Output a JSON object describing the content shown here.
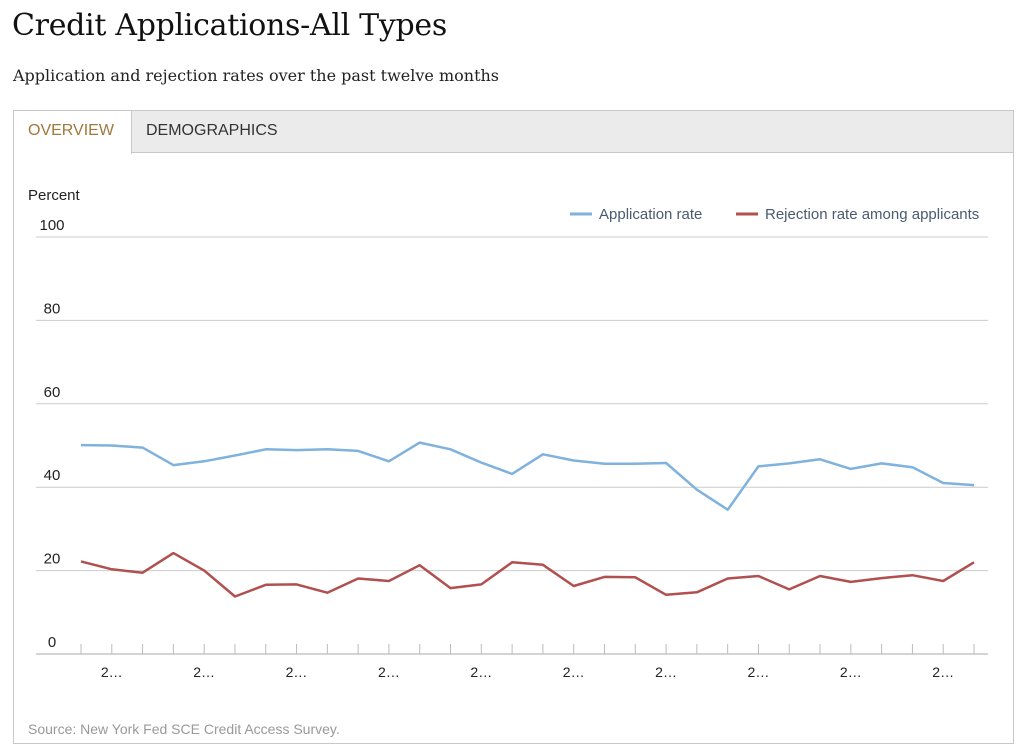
{
  "page": {
    "title": "Credit Applications-All Types",
    "subtitle": "Application and rejection rates over the past twelve months"
  },
  "tabs": [
    {
      "label": "OVERVIEW",
      "active": true
    },
    {
      "label": "DEMOGRAPHICS",
      "active": false
    }
  ],
  "source": "Source: New York Fed SCE Credit Access Survey.",
  "colors": {
    "application": "#7fb2dc",
    "rejection": "#b0504f",
    "active_tab": "#a0783a",
    "grid": "#cccccc"
  },
  "chart_data": {
    "type": "line",
    "ylabel": "Percent",
    "ylim": [
      0,
      100
    ],
    "yticks": [
      0,
      20,
      40,
      60,
      80,
      100
    ],
    "grid": true,
    "legend_position": "top-right",
    "x_tick_labels": [
      "2…",
      "2…",
      "2…",
      "2…",
      "2…",
      "2…",
      "2…",
      "2…",
      "2…",
      "2…"
    ],
    "series": [
      {
        "name": "Application rate",
        "values": [
          50.1,
          50.0,
          49.5,
          45.3,
          46.2,
          47.6,
          49.1,
          48.9,
          49.1,
          48.7,
          46.2,
          50.7,
          49.1,
          45.9,
          43.2,
          47.9,
          46.4,
          45.6,
          45.6,
          45.8,
          39.4,
          34.6,
          45.0,
          45.7,
          46.7,
          44.4,
          45.7,
          44.8,
          41.0,
          40.5
        ]
      },
      {
        "name": "Rejection rate among applicants",
        "values": [
          22.2,
          20.3,
          19.5,
          24.2,
          20.0,
          13.8,
          16.6,
          16.7,
          14.7,
          18.1,
          17.5,
          21.3,
          15.8,
          16.7,
          22.0,
          21.4,
          16.3,
          18.5,
          18.4,
          14.2,
          14.8,
          18.1,
          18.7,
          15.5,
          18.7,
          17.3,
          18.2,
          18.9,
          17.5,
          22.0
        ]
      }
    ]
  }
}
